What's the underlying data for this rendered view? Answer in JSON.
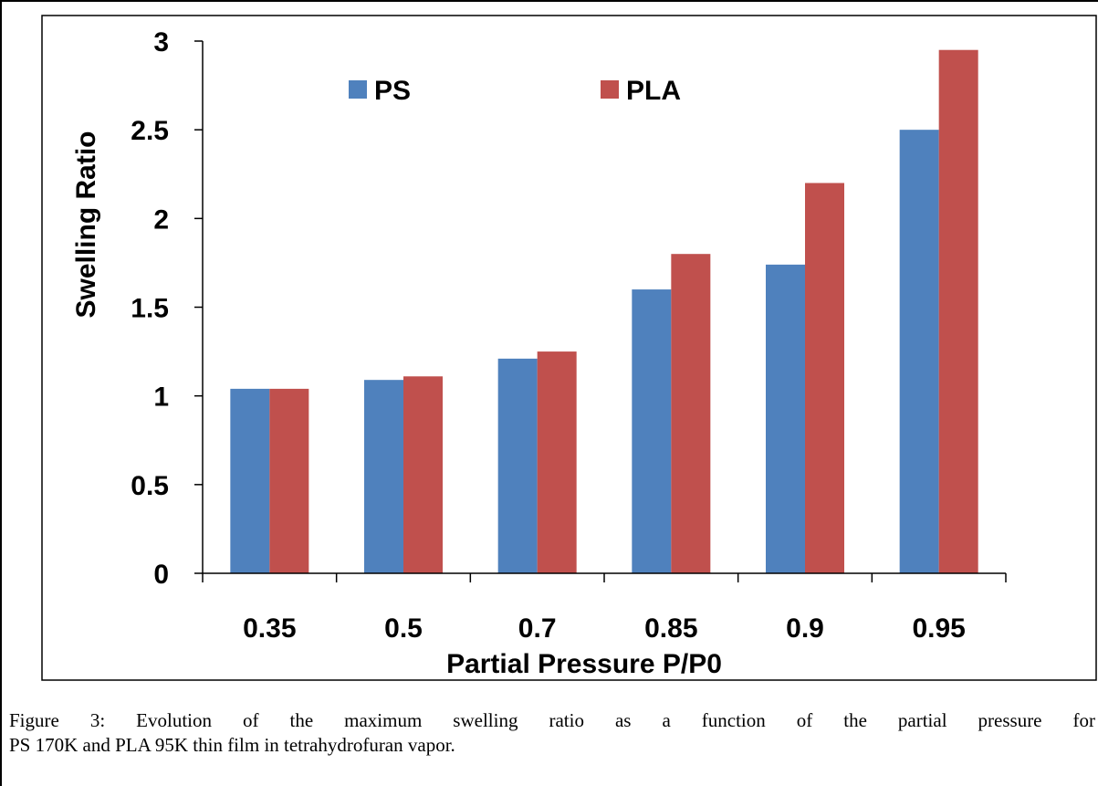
{
  "chart_data": {
    "type": "bar",
    "categories": [
      "0.35",
      "0.5",
      "0.7",
      "0.85",
      "0.9",
      "0.95"
    ],
    "series": [
      {
        "name": "PS",
        "color": "#4F81BD",
        "values": [
          1.04,
          1.09,
          1.21,
          1.6,
          1.74,
          2.5
        ]
      },
      {
        "name": "PLA",
        "color": "#C0504D",
        "values": [
          1.04,
          1.11,
          1.25,
          1.8,
          2.2,
          2.95
        ]
      }
    ],
    "title": "",
    "xlabel": "Partial Pressure  P/P0",
    "ylabel": "Swelling Ratio",
    "ylim": [
      0,
      3
    ],
    "yticks": [
      "0",
      "0.5",
      "1",
      "1.5",
      "2",
      "2.5",
      "3"
    ],
    "grid": false,
    "legend_position": "top"
  },
  "caption": {
    "line1": "Figure 3: Evolution of the maximum swelling ratio as a function of the partial pressure for",
    "line2": "PS 170K and PLA 95K thin film in tetrahydrofuran vapor."
  }
}
